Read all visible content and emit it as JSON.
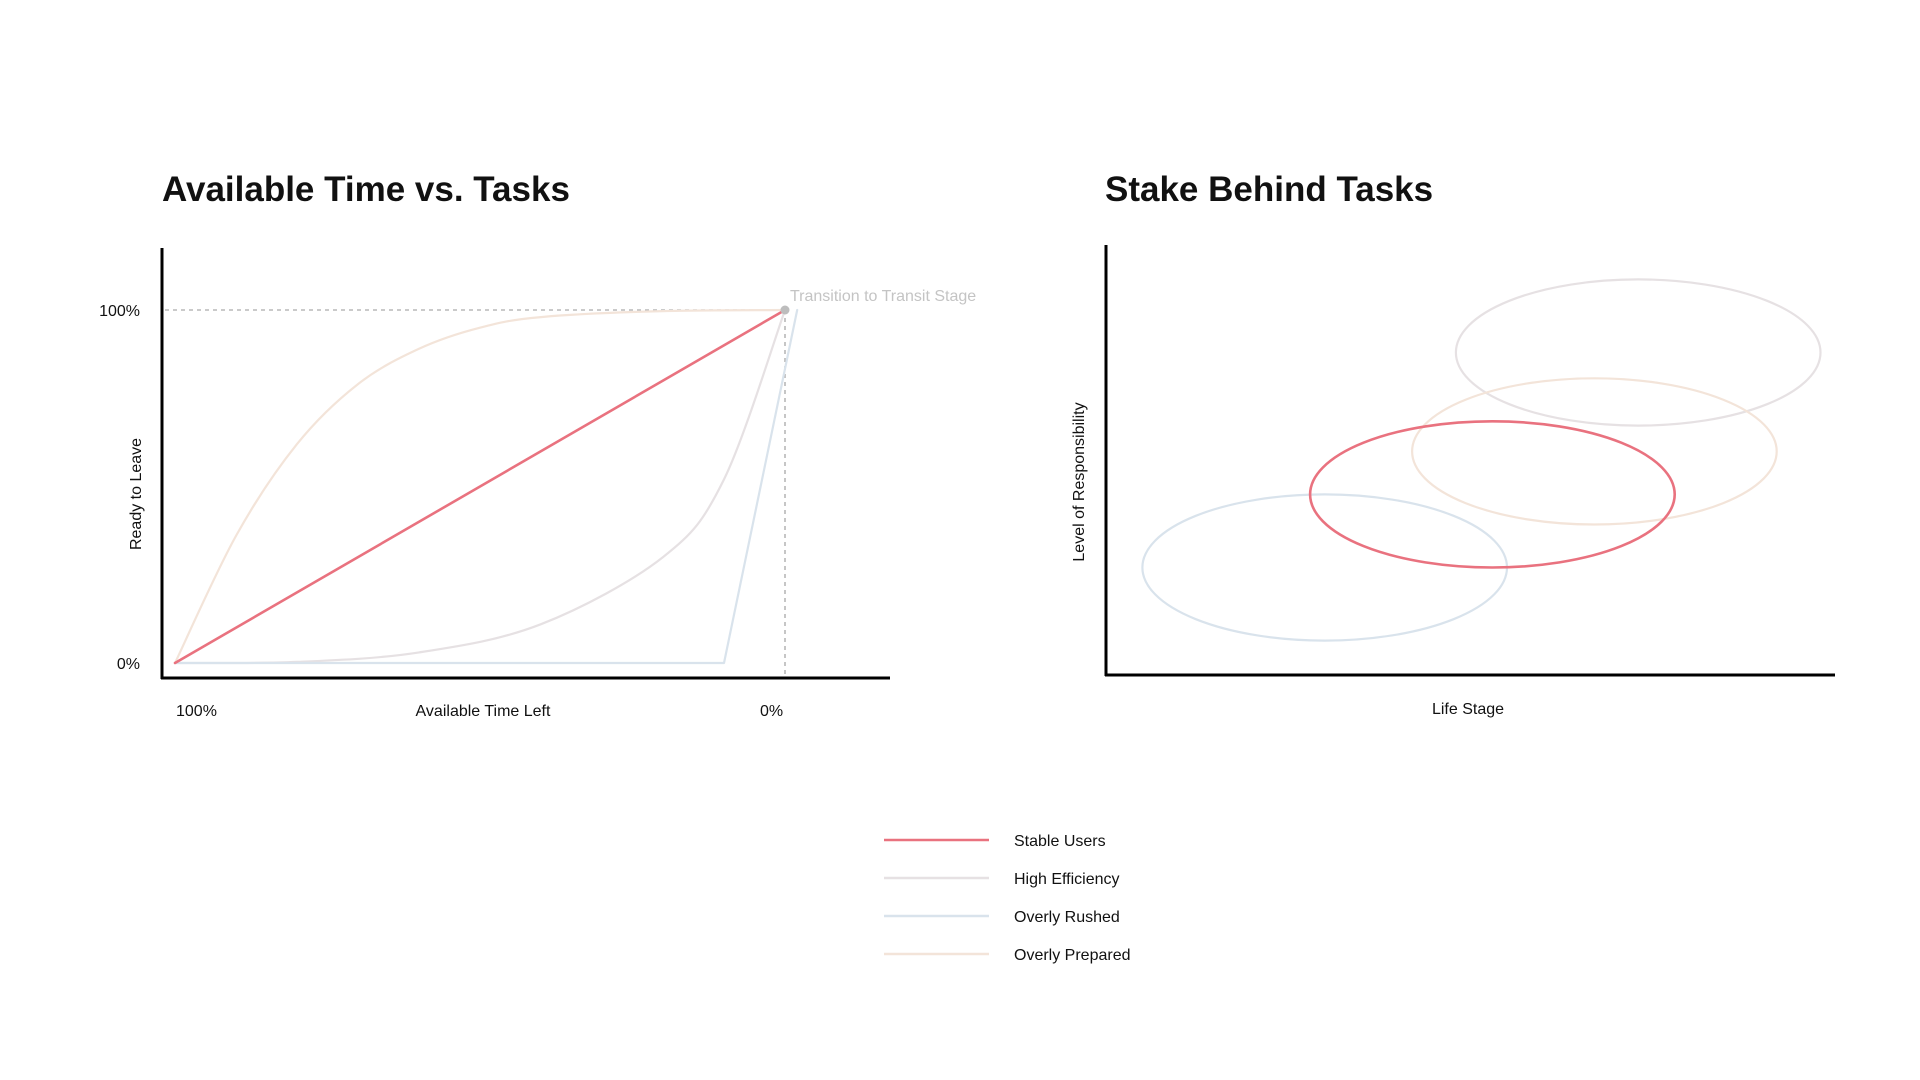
{
  "chart_data": [
    {
      "type": "line",
      "title": "Available Time vs. Tasks",
      "xlabel": "Available Time Left",
      "ylabel": "Ready to Leave",
      "x_ticks": [
        "100%",
        "0%"
      ],
      "y_ticks": [
        "100%",
        "0%"
      ],
      "xlim": [
        100,
        0
      ],
      "ylim": [
        0,
        100
      ],
      "annotation": "Transition to Transit Stage",
      "series": [
        {
          "name": "Stable Users",
          "color": "#e9727f",
          "points": [
            [
              100,
              0
            ],
            [
              0,
              100
            ]
          ]
        },
        {
          "name": "High Efficiency",
          "color": "#e6e1e3",
          "points": [
            [
              100,
              0
            ],
            [
              80,
              0.3
            ],
            [
              60,
              3
            ],
            [
              40,
              11
            ],
            [
              20,
              30
            ],
            [
              10,
              52
            ],
            [
              0,
              100
            ]
          ]
        },
        {
          "name": "Overly Rushed",
          "color": "#d9e3ec",
          "points": [
            [
              100,
              0
            ],
            [
              10,
              0
            ],
            [
              -2,
              100
            ]
          ]
        },
        {
          "name": "Overly Prepared",
          "color": "#f3e4d9",
          "points": [
            [
              100,
              0
            ],
            [
              90,
              36
            ],
            [
              80,
              62
            ],
            [
              70,
              79
            ],
            [
              60,
              89
            ],
            [
              50,
              95
            ],
            [
              40,
              98
            ],
            [
              20,
              99.7
            ],
            [
              0,
              100
            ]
          ]
        }
      ]
    },
    {
      "type": "scatter",
      "title": "Stake Behind Tasks",
      "xlabel": "Life Stage",
      "ylabel": "Level of Responsibility",
      "series": [
        {
          "name": "Overly Rushed",
          "color": "#d9e3ec",
          "cx": 0.3,
          "cy": 0.25,
          "rx": 0.25,
          "ry": 0.17
        },
        {
          "name": "Stable Users",
          "color": "#e9727f",
          "cx": 0.53,
          "cy": 0.42,
          "rx": 0.25,
          "ry": 0.17
        },
        {
          "name": "Overly Prepared",
          "color": "#f3e4d9",
          "cx": 0.67,
          "cy": 0.52,
          "rx": 0.25,
          "ry": 0.17
        },
        {
          "name": "High Efficiency",
          "color": "#e6e1e3",
          "cx": 0.73,
          "cy": 0.75,
          "rx": 0.25,
          "ry": 0.17
        }
      ]
    }
  ],
  "legend": [
    {
      "label": "Stable Users",
      "color": "#e9727f"
    },
    {
      "label": "High Efficiency",
      "color": "#e6e1e3"
    },
    {
      "label": "Overly Rushed",
      "color": "#d9e3ec"
    },
    {
      "label": "Overly Prepared",
      "color": "#f3e4d9"
    }
  ]
}
